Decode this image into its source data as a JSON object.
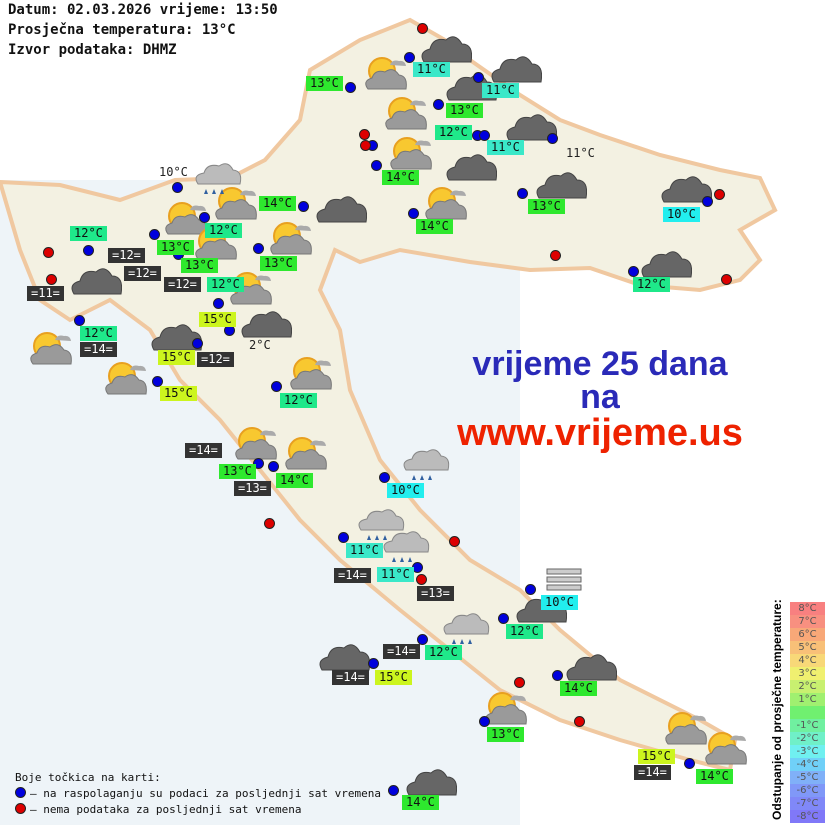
{
  "header": {
    "line1": "Datum: 02.03.2026 vrijeme: 13:50",
    "line2": "Prosječna temperatura: 13°C",
    "line3": "Izvor podataka: DHMZ"
  },
  "colors": {
    "green": "#2ee82e",
    "teal_green": "#1fe88a",
    "teal": "#3ae8c8",
    "cyan": "#22eeee",
    "yellow": "#ccf51e",
    "dark": "#333333",
    "station_ok": "#0000dd",
    "station_missing": "#dd0000"
  },
  "labels": [
    {
      "text": "13°C",
      "style": "green"
    },
    {
      "text": "11°C",
      "style": "teal"
    },
    {
      "text": "11°C",
      "style": "teal"
    },
    {
      "text": "13°C",
      "style": "green"
    },
    {
      "text": "12°C",
      "style": "teal_green"
    },
    {
      "text": "11°C",
      "style": "teal"
    },
    {
      "text": "11°C",
      "style": "plain"
    },
    {
      "text": "14°C",
      "style": "green"
    },
    {
      "text": "14°C",
      "style": "green"
    },
    {
      "text": "14°C",
      "style": "green"
    },
    {
      "text": "13°C",
      "style": "green"
    },
    {
      "text": "10°C",
      "style": "cyan"
    },
    {
      "text": "12°C",
      "style": "teal_green"
    },
    {
      "text": "10°C",
      "style": "plain"
    },
    {
      "text": "12°C",
      "style": "teal_green"
    },
    {
      "text": "13°C",
      "style": "green"
    },
    {
      "text": "12°C",
      "style": "teal_green"
    },
    {
      "text": "=12=",
      "style": "dark"
    },
    {
      "text": "=12=",
      "style": "dark"
    },
    {
      "text": "=12=",
      "style": "dark"
    },
    {
      "text": "13°C",
      "style": "green"
    },
    {
      "text": "12°C",
      "style": "teal_green"
    },
    {
      "text": "13°C",
      "style": "green"
    },
    {
      "text": "=11=",
      "style": "dark"
    },
    {
      "text": "15°C",
      "style": "yellow"
    },
    {
      "text": "12°C",
      "style": "teal_green"
    },
    {
      "text": "=14=",
      "style": "dark"
    },
    {
      "text": "15°C",
      "style": "yellow"
    },
    {
      "text": "=12=",
      "style": "dark"
    },
    {
      "text": "2°C",
      "style": "plain"
    },
    {
      "text": "15°C",
      "style": "yellow"
    },
    {
      "text": "12°C",
      "style": "teal_green"
    },
    {
      "text": "=14=",
      "style": "dark"
    },
    {
      "text": "13°C",
      "style": "green"
    },
    {
      "text": "14°C",
      "style": "green"
    },
    {
      "text": "=13=",
      "style": "dark"
    },
    {
      "text": "10°C",
      "style": "cyan"
    },
    {
      "text": "11°C",
      "style": "teal"
    },
    {
      "text": "=14=",
      "style": "dark"
    },
    {
      "text": "11°C",
      "style": "teal"
    },
    {
      "text": "=13=",
      "style": "dark"
    },
    {
      "text": "10°C",
      "style": "cyan"
    },
    {
      "text": "12°C",
      "style": "teal_green"
    },
    {
      "text": "=14=",
      "style": "dark"
    },
    {
      "text": "12°C",
      "style": "teal_green"
    },
    {
      "text": "=14=",
      "style": "dark"
    },
    {
      "text": "15°C",
      "style": "yellow"
    },
    {
      "text": "14°C",
      "style": "green"
    },
    {
      "text": "13°C",
      "style": "green"
    },
    {
      "text": "15°C",
      "style": "yellow"
    },
    {
      "text": "=14=",
      "style": "dark"
    },
    {
      "text": "14°C",
      "style": "green"
    },
    {
      "text": "14°C",
      "style": "green"
    }
  ],
  "stations_ok_count_shown": true,
  "icons": [
    "partly-cloudy",
    "partly-cloudy",
    "partly-cloudy",
    "partly-cloudy",
    "partly-cloudy",
    "partly-cloudy",
    "partly-cloudy",
    "partly-cloudy",
    "partly-cloudy",
    "partly-cloudy",
    "partly-cloudy",
    "partly-cloudy",
    "partly-cloudy",
    "partly-cloudy",
    "partly-cloudy",
    "partly-cloudy",
    "partly-cloudy",
    "cloudy",
    "cloudy",
    "cloudy",
    "cloudy",
    "cloudy",
    "cloudy",
    "cloudy",
    "cloudy",
    "cloudy",
    "cloudy",
    "cloudy",
    "cloudy",
    "cloudy",
    "cloudy",
    "cloudy",
    "cloudy",
    "rain",
    "rain",
    "rain",
    "rain",
    "rain",
    "fog"
  ],
  "promo": {
    "line1": "vrijeme 25 dana",
    "line2": "na",
    "line3": "www.vrijeme.us",
    "color1": "#2a2ab8",
    "color2": "#ee2200"
  },
  "legend": {
    "title": "Boje točkica na karti:",
    "ok": "– na raspolaganju su podaci za posljednji sat vremena",
    "missing": "– nema podataka za posljednji sat vremena"
  },
  "scale": {
    "title": "Odstupanje od prosječne temperature:",
    "steps": [
      {
        "t": "8°C",
        "c": "#f88080"
      },
      {
        "t": "7°C",
        "c": "#f89080"
      },
      {
        "t": "6°C",
        "c": "#f8a878"
      },
      {
        "t": "5°C",
        "c": "#f8c078"
      },
      {
        "t": "4°C",
        "c": "#f8d878"
      },
      {
        "t": "3°C",
        "c": "#f0f070"
      },
      {
        "t": "2°C",
        "c": "#c8f070"
      },
      {
        "t": "1°C",
        "c": "#a0f070"
      },
      {
        "t": "",
        "c": "#70f070"
      },
      {
        "t": "-1°C",
        "c": "#70f0a0"
      },
      {
        "t": "-2°C",
        "c": "#70f0c8"
      },
      {
        "t": "-3°C",
        "c": "#70f0f0"
      },
      {
        "t": "-4°C",
        "c": "#70d0f8"
      },
      {
        "t": "-5°C",
        "c": "#80b0f8"
      },
      {
        "t": "-6°C",
        "c": "#8098f8"
      },
      {
        "t": "-7°C",
        "c": "#8088f8"
      },
      {
        "t": "-8°C",
        "c": "#8078f8"
      }
    ]
  }
}
